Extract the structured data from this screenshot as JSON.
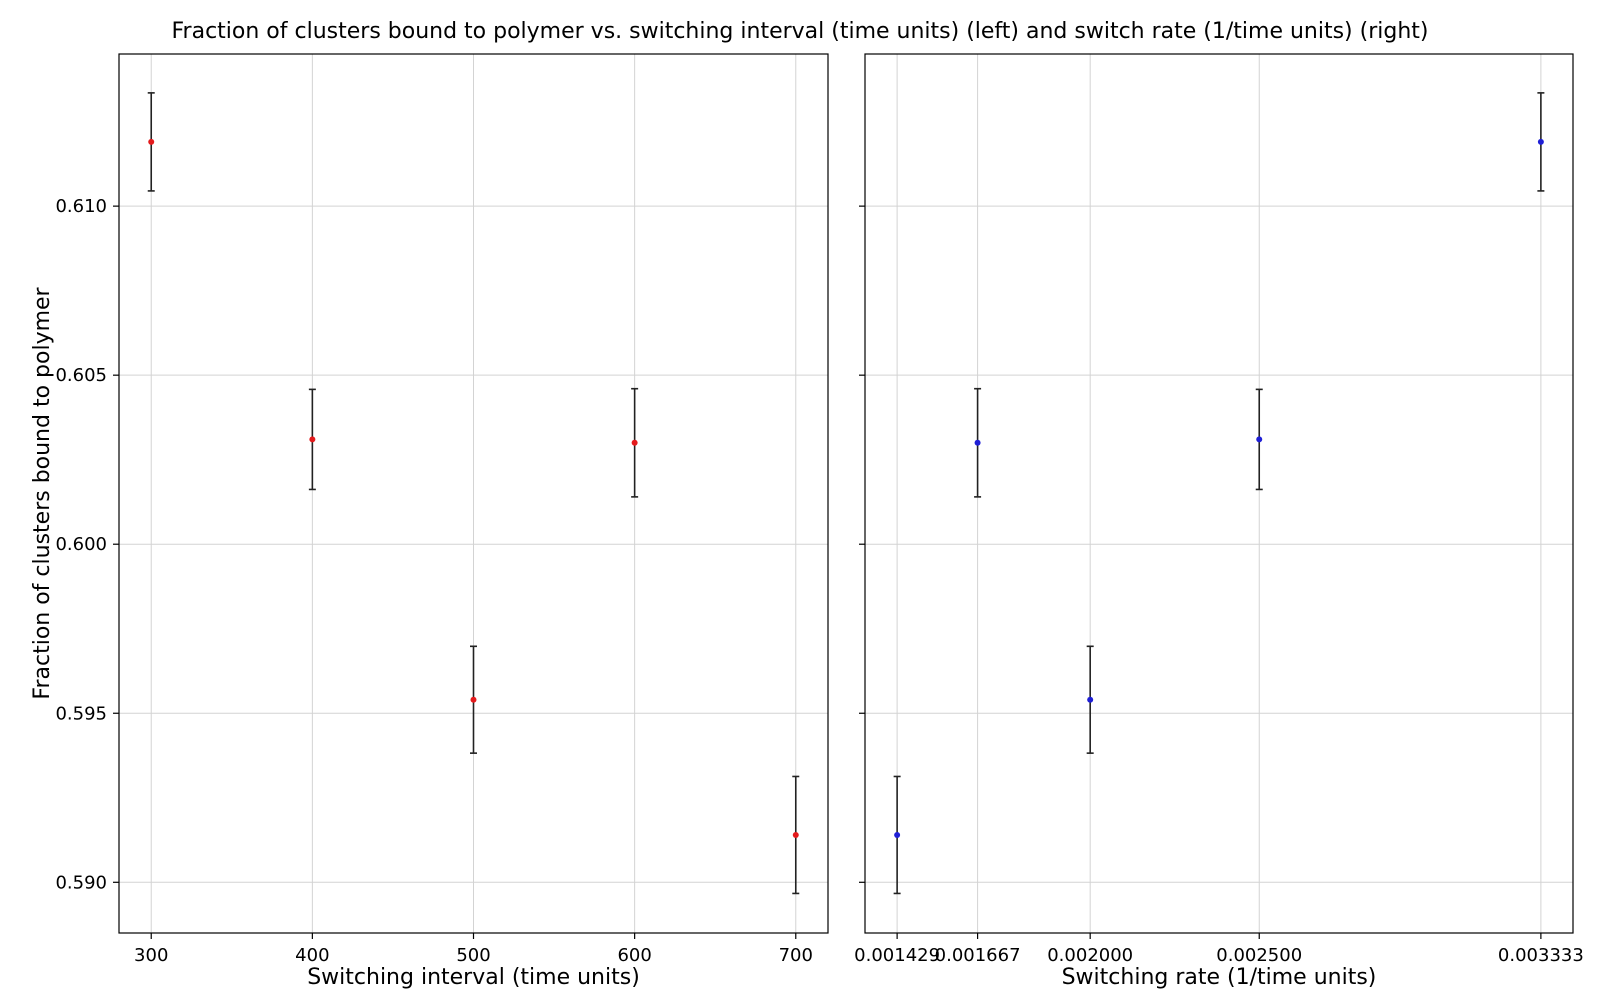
{
  "figure": {
    "title": "Fraction of clusters bound to polymer vs. switching interval (time units) (left) and switch rate (1/time units) (right)"
  },
  "chart_data": [
    {
      "type": "scatter",
      "title": "",
      "xlabel": "Switching interval (time units)",
      "ylabel": "Fraction of clusters bound to polymer",
      "x": [
        300,
        400,
        500,
        600,
        700
      ],
      "x_ticks": [
        300,
        400,
        500,
        600,
        700
      ],
      "x_tick_labels": [
        "300",
        "400",
        "500",
        "600",
        "700"
      ],
      "xlim": [
        280,
        720
      ],
      "ylim": [
        0.5885,
        0.6145
      ],
      "y_ticks": [
        0.59,
        0.595,
        0.6,
        0.605,
        0.61
      ],
      "y_tick_labels": [
        "0.590",
        "0.595",
        "0.600",
        "0.605",
        "0.610"
      ],
      "grid": true,
      "series": [
        {
          "values": [
            0.6119,
            0.6031,
            0.5954,
            0.603,
            0.5914
          ],
          "errors": [
            0.00145,
            0.00148,
            0.00158,
            0.0016,
            0.00173
          ],
          "color": "#e41a1c"
        }
      ]
    },
    {
      "type": "scatter",
      "title": "",
      "xlabel": "Switching rate (1/time units)",
      "ylabel": "",
      "x": [
        0.001429,
        0.001667,
        0.002,
        0.0025,
        0.003333
      ],
      "x_ticks": [
        0.001429,
        0.001667,
        0.002,
        0.0025,
        0.003333
      ],
      "x_tick_labels": [
        "0.001429",
        "0.001667",
        "0.002000",
        "0.002500",
        "0.003333"
      ],
      "xlim": [
        0.001334,
        0.003428
      ],
      "ylim": [
        0.5885,
        0.6145
      ],
      "y_ticks": [
        0.59,
        0.595,
        0.6,
        0.605,
        0.61
      ],
      "y_tick_labels": [],
      "grid": true,
      "series": [
        {
          "values": [
            0.5914,
            0.603,
            0.5954,
            0.6031,
            0.6119
          ],
          "errors": [
            0.00173,
            0.0016,
            0.00158,
            0.00148,
            0.00145
          ],
          "color": "#1f1fd6"
        }
      ]
    }
  ]
}
